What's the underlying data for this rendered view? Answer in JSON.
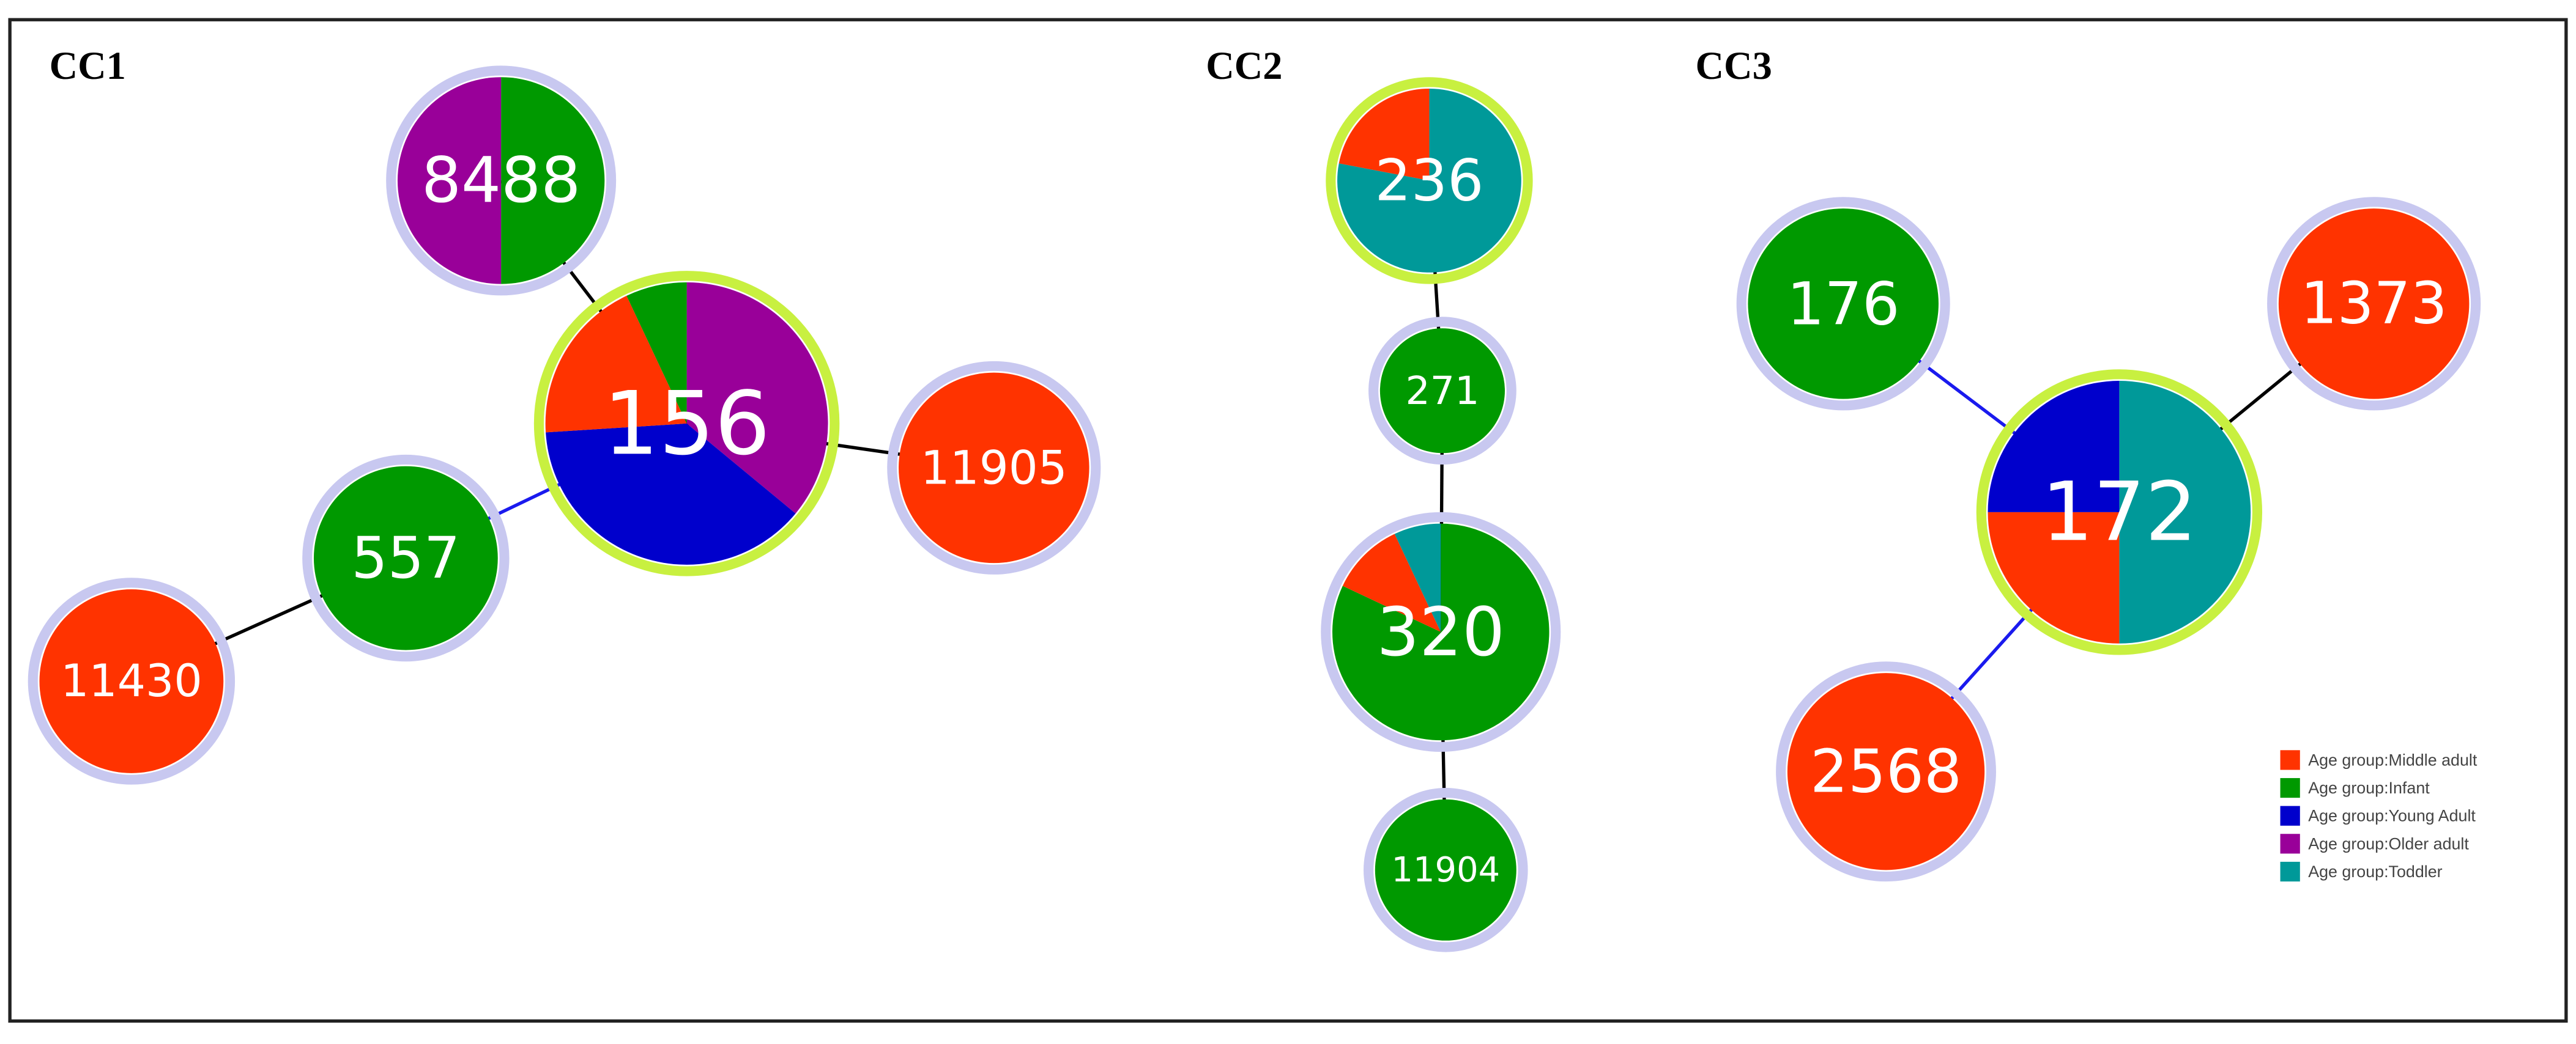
{
  "groups": [
    {
      "label": "CC1",
      "nodes": [
        {
          "label": "8488",
          "slices": [
            {
              "category": 1,
              "share": 50
            },
            {
              "category": 3,
              "share": 50
            }
          ]
        },
        {
          "label": "156",
          "slices": [
            {
              "category": 3,
              "share": 36
            },
            {
              "category": 2,
              "share": 38
            },
            {
              "category": 0,
              "share": 19
            },
            {
              "category": 1,
              "share": 7
            }
          ]
        },
        {
          "label": "11905",
          "slices": [
            {
              "category": 0,
              "share": 100
            }
          ]
        },
        {
          "label": "557",
          "slices": [
            {
              "category": 1,
              "share": 100
            }
          ]
        },
        {
          "label": "11430",
          "slices": [
            {
              "category": 0,
              "share": 100
            }
          ]
        }
      ]
    },
    {
      "label": "CC2",
      "nodes": [
        {
          "label": "236",
          "slices": [
            {
              "category": 4,
              "share": 78
            },
            {
              "category": 0,
              "share": 22
            }
          ]
        },
        {
          "label": "271",
          "slices": [
            {
              "category": 1,
              "share": 100
            }
          ]
        },
        {
          "label": "320",
          "slices": [
            {
              "category": 1,
              "share": 82
            },
            {
              "category": 0,
              "share": 11
            },
            {
              "category": 4,
              "share": 7
            }
          ]
        },
        {
          "label": "11904",
          "slices": [
            {
              "category": 1,
              "share": 100
            }
          ]
        }
      ]
    },
    {
      "label": "CC3",
      "nodes": [
        {
          "label": "176",
          "slices": [
            {
              "category": 1,
              "share": 100
            }
          ]
        },
        {
          "label": "1373",
          "slices": [
            {
              "category": 0,
              "share": 100
            }
          ]
        },
        {
          "label": "172",
          "slices": [
            {
              "category": 4,
              "share": 50
            },
            {
              "category": 0,
              "share": 25
            },
            {
              "category": 2,
              "share": 25
            }
          ]
        },
        {
          "label": "2568",
          "slices": [
            {
              "category": 0,
              "share": 100
            }
          ]
        }
      ]
    }
  ],
  "legend": [
    {
      "label": "Age group:Middle adult",
      "color": "#ff3300"
    },
    {
      "label": "Age group:Infant",
      "color": "#009900"
    },
    {
      "label": "Age group:Young Adult",
      "color": "#0000cc"
    },
    {
      "label": "Age group:Older adult",
      "color": "#990099"
    },
    {
      "label": "Age group:Toddler",
      "color": "#009999"
    }
  ]
}
